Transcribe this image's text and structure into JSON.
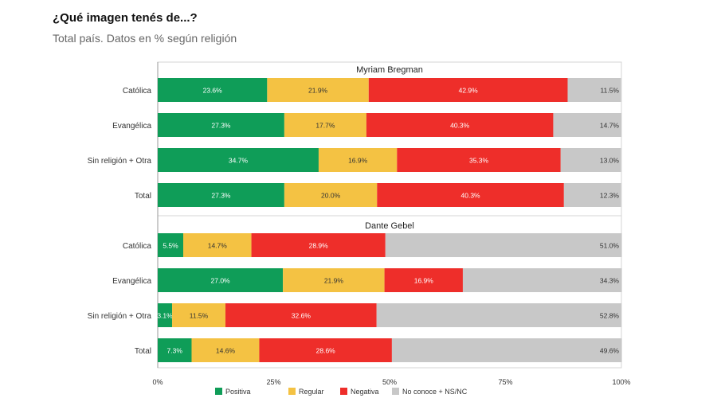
{
  "header": {
    "title": "¿Qué imagen tenés de...?",
    "subtitle": "Total país. Datos en % según religión"
  },
  "chart_data": {
    "type": "bar",
    "orientation": "horizontal",
    "stacked": true,
    "categories": [
      "Positiva",
      "Regular",
      "Negativa",
      "No conoce + NS/NC"
    ],
    "colors": [
      "#0f9d58",
      "#f4c243",
      "#ee2e2a",
      "#c8c8c8"
    ],
    "label_colors": [
      "#ffffff",
      "#333333",
      "#ffffff",
      "#333333"
    ],
    "xlim": [
      0,
      100
    ],
    "x_ticks": [
      "0%",
      "25%",
      "50%",
      "75%",
      "100%"
    ],
    "legend_position": "bottom",
    "grid": false,
    "panels": [
      {
        "title": "Myriam Bregman",
        "rows": [
          {
            "label": "Católica",
            "values": [
              23.6,
              21.9,
              42.9,
              11.5
            ],
            "value_labels": [
              "23.6%",
              "21.9%",
              "42.9%",
              "11.5%"
            ]
          },
          {
            "label": "Evangélica",
            "values": [
              27.3,
              17.7,
              40.3,
              14.7
            ],
            "value_labels": [
              "27.3%",
              "17.7%",
              "40.3%",
              "14.7%"
            ]
          },
          {
            "label": "Sin religión + Otra",
            "values": [
              34.7,
              16.9,
              35.3,
              13.0
            ],
            "value_labels": [
              "34.7%",
              "16.9%",
              "35.3%",
              "13.0%"
            ]
          },
          {
            "label": "Total",
            "values": [
              27.3,
              20.0,
              40.3,
              12.3
            ],
            "value_labels": [
              "27.3%",
              "20.0%",
              "40.3%",
              "12.3%"
            ]
          }
        ]
      },
      {
        "title": "Dante Gebel",
        "rows": [
          {
            "label": "Católica",
            "values": [
              5.5,
              14.7,
              28.9,
              51.0
            ],
            "value_labels": [
              "5.5%",
              "14.7%",
              "28.9%",
              "51.0%"
            ]
          },
          {
            "label": "Evangélica",
            "values": [
              27.0,
              21.9,
              16.9,
              34.3
            ],
            "value_labels": [
              "27.0%",
              "21.9%",
              "16.9%",
              "34.3%"
            ]
          },
          {
            "label": "Sin religión + Otra",
            "values": [
              3.1,
              11.5,
              32.6,
              52.8
            ],
            "value_labels": [
              "3.1%",
              "11.5%",
              "32.6%",
              "52.8%"
            ]
          },
          {
            "label": "Total",
            "values": [
              7.3,
              14.6,
              28.6,
              49.6
            ],
            "value_labels": [
              "7.3%",
              "14.6%",
              "28.6%",
              "49.6%"
            ]
          }
        ]
      }
    ]
  }
}
